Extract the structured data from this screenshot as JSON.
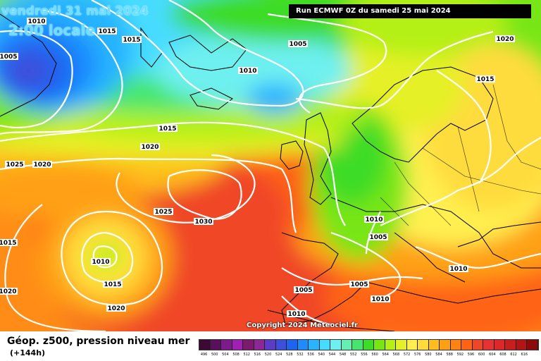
{
  "header": {
    "date": "vendredi 31 mai 2024",
    "time": "2:00 locale",
    "run": "Run ECMWF 0Z du samedi 25 mai 2024"
  },
  "copyright": "Copyright 2024 Meteociel.fr",
  "footer": {
    "title": "Géop. z500, pression niveau mer",
    "subtitle": "(+144h)"
  },
  "legend": {
    "values": [
      "496",
      "500",
      "504",
      "508",
      "512",
      "516",
      "520",
      "524",
      "528",
      "532",
      "536",
      "540",
      "544",
      "548",
      "552",
      "556",
      "560",
      "564",
      "568",
      "572",
      "576",
      "580",
      "584",
      "588",
      "592",
      "596",
      "600",
      "604",
      "608",
      "612",
      "616"
    ],
    "colors": [
      "#3c0a32",
      "#5a0f5a",
      "#7d1a8c",
      "#a020b4",
      "#7d1a6e",
      "#8c2896",
      "#5a3cc8",
      "#3c50dc",
      "#1e64f0",
      "#1e8cff",
      "#28b4ff",
      "#46dcff",
      "#6ef0f0",
      "#64f0b4",
      "#46e66e",
      "#3cdc28",
      "#78e614",
      "#b4f014",
      "#e6f028",
      "#fff050",
      "#ffdc3c",
      "#ffbe1e",
      "#ffa014",
      "#ff8214",
      "#ff6414",
      "#f04628",
      "#e63232",
      "#dc2828",
      "#c81e1e",
      "#b41414",
      "#8c0a0a"
    ]
  },
  "isobars": [
    {
      "label": "1005",
      "color": "#0000ff"
    },
    {
      "label": "1010",
      "color": "#0000ff"
    },
    {
      "label": "1015",
      "color": "#0000ff"
    },
    {
      "label": "1015",
      "color": "#0000ff"
    },
    {
      "label": "1005",
      "color": "#0000ff"
    },
    {
      "label": "1010",
      "color": "#0000ff"
    },
    {
      "label": "1020",
      "color": "#0000ff"
    },
    {
      "label": "1015",
      "color": "#0000ff"
    },
    {
      "label": "1015",
      "color": "#0000ff"
    },
    {
      "label": "1020",
      "color": "#0000ff"
    },
    {
      "label": "1025",
      "color": "#0000ff"
    },
    {
      "label": "1020",
      "color": "#0000ff"
    },
    {
      "label": "1025",
      "color": "#0000ff"
    },
    {
      "label": "1030",
      "color": "#0000ff"
    },
    {
      "label": "1015",
      "color": "#0000ff"
    },
    {
      "label": "1010",
      "color": "#0000ff"
    },
    {
      "label": "1015",
      "color": "#0000ff"
    },
    {
      "label": "1020",
      "color": "#0000ff"
    },
    {
      "label": "1020",
      "color": "#0000ff"
    },
    {
      "label": "1010",
      "color": "#0000ff"
    },
    {
      "label": "1005",
      "color": "#0000ff"
    },
    {
      "label": "1010",
      "color": "#0000ff"
    },
    {
      "label": "1005",
      "color": "#0000ff"
    },
    {
      "label": "1005",
      "color": "#0000ff"
    },
    {
      "label": "1010",
      "color": "#0000ff"
    },
    {
      "label": "1010",
      "color": "#0000ff"
    }
  ]
}
